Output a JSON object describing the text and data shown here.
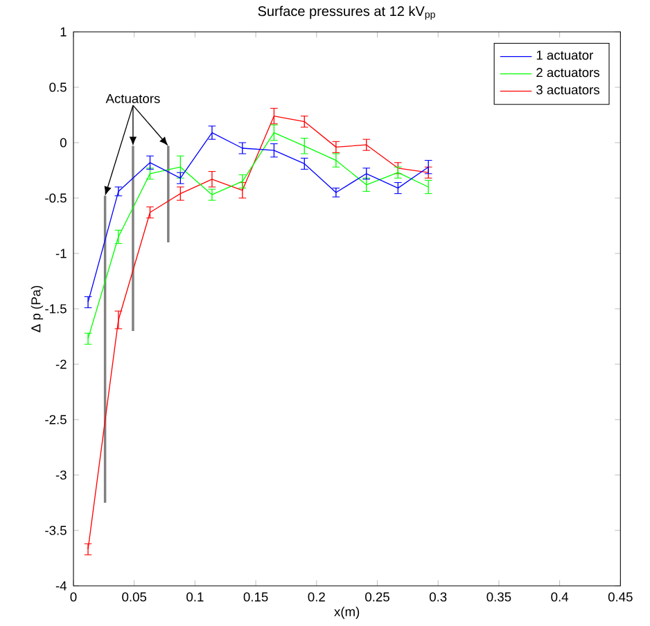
{
  "chart_data": {
    "type": "line",
    "title": "Surface pressures at 12 kV$_{pp}$",
    "xlabel": "x(m)",
    "ylabel": "Δ p (Pa)",
    "x": [
      0.012,
      0.037,
      0.063,
      0.088,
      0.114,
      0.139,
      0.165,
      0.19,
      0.216,
      0.241,
      0.267,
      0.292
    ],
    "series": [
      {
        "name": "1 actuator",
        "color": "#0000ff",
        "values": [
          -1.44,
          -0.44,
          -0.18,
          -0.32,
          0.09,
          -0.05,
          -0.07,
          -0.19,
          -0.45,
          -0.28,
          -0.41,
          -0.22
        ],
        "errors": [
          0.05,
          0.04,
          0.06,
          0.05,
          0.06,
          0.05,
          0.06,
          0.05,
          0.04,
          0.05,
          0.05,
          0.06
        ]
      },
      {
        "name": "2 actuators",
        "color": "#00ff00",
        "values": [
          -1.77,
          -0.85,
          -0.28,
          -0.22,
          -0.47,
          -0.35,
          0.09,
          -0.03,
          -0.16,
          -0.38,
          -0.27,
          -0.4
        ],
        "errors": [
          0.05,
          0.06,
          0.05,
          0.1,
          0.05,
          0.06,
          0.07,
          0.07,
          0.06,
          0.06,
          0.05,
          0.06
        ]
      },
      {
        "name": "3 actuators",
        "color": "#ff0000",
        "values": [
          -3.67,
          -1.6,
          -0.63,
          -0.46,
          -0.33,
          -0.43,
          0.24,
          0.19,
          -0.04,
          -0.02,
          -0.23,
          -0.27
        ],
        "errors": [
          0.05,
          0.08,
          0.05,
          0.06,
          0.07,
          0.07,
          0.07,
          0.05,
          0.05,
          0.05,
          0.05,
          0.05
        ]
      },
      {
        "type": "line",
        "color": "#808080",
        "x": [
          0.026,
          0.026
        ],
        "values": [
          -0.48,
          -3.25
        ]
      },
      {
        "type": "line",
        "color": "#808080",
        "x": [
          0.049,
          0.049
        ],
        "values": [
          -0.03,
          -1.7
        ]
      },
      {
        "type": "line",
        "color": "#808080",
        "x": [
          0.078,
          0.078
        ],
        "values": [
          -0.03,
          -0.9
        ]
      }
    ],
    "annotations": [
      {
        "text": "Actuators",
        "x": 0.049,
        "y": -0.03
      }
    ],
    "xlim": [
      0,
      0.45
    ],
    "ylim": [
      -4,
      1
    ],
    "xticks": [
      0,
      0.05,
      0.1,
      0.15,
      0.2,
      0.25,
      0.3,
      0.35,
      0.4,
      0.45
    ],
    "yticks": [
      -4,
      -3.5,
      -3,
      -2.5,
      -2,
      -1.5,
      -1,
      -0.5,
      0,
      0.5,
      1
    ],
    "legend": "top right",
    "grid": false,
    "marker": "none",
    "line_style": "solid"
  }
}
